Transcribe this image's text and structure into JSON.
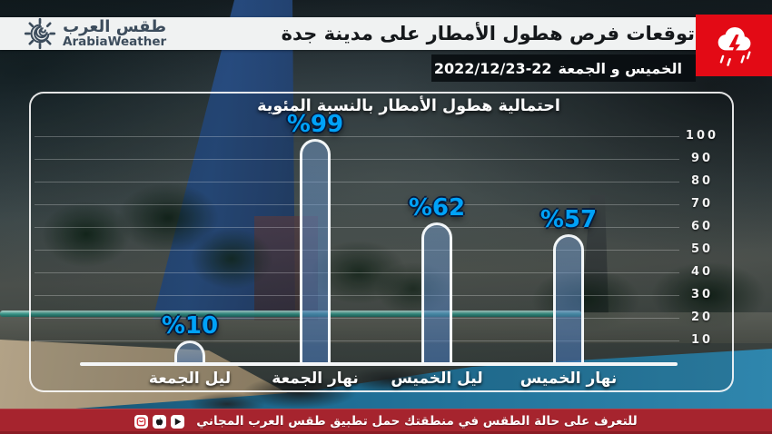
{
  "brand": {
    "name_ar": "طقس العرب",
    "name_en": "ArabiaWeather"
  },
  "header": {
    "title": "توقعات فرص هطول الأمطار على مدينة جدة",
    "date_days": "الخميس و الجمعة",
    "date_range": "2022/12/23-22",
    "date_icon": "calendar-clock-icon"
  },
  "alert_badge": {
    "icon": "storm-cloud-icon",
    "color": "#e30a15"
  },
  "chart_data": {
    "type": "bar",
    "direction": "rtl",
    "title": "احتمالية هطول الأمطار بالنسبة المئوية",
    "categories": [
      "نهار الخميس",
      "ليل الخميس",
      "نهار الجمعة",
      "ليل الجمعة"
    ],
    "values": [
      57,
      62,
      99,
      10
    ],
    "bars_left_to_right": [
      {
        "category": "ليل الجمعة",
        "value": 10,
        "value_label": "%10"
      },
      {
        "category": "نهار الجمعة",
        "value": 99,
        "value_label": "%99"
      },
      {
        "category": "ليل الخميس",
        "value": 62,
        "value_label": "%62"
      },
      {
        "category": "نهار الخميس",
        "value": 57,
        "value_label": "%57"
      }
    ],
    "y_ticks": [
      100,
      90,
      80,
      70,
      60,
      50,
      40,
      30,
      20,
      10
    ],
    "ylim": [
      0,
      100
    ],
    "grid": true,
    "legend": false,
    "xlabel": "",
    "ylabel": "",
    "bar_fill": "rgba(88,136,198,0.55)",
    "bar_border": "#fafcfd",
    "value_label_color": "#00a2f8"
  },
  "footer": {
    "text": "للتعرف على حالة الطقس في منطقتك حمل تطبيق طقس العرب المجاني",
    "store_icons": [
      "huawei-appgallery-icon",
      "app-store-icon",
      "google-play-icon"
    ]
  }
}
